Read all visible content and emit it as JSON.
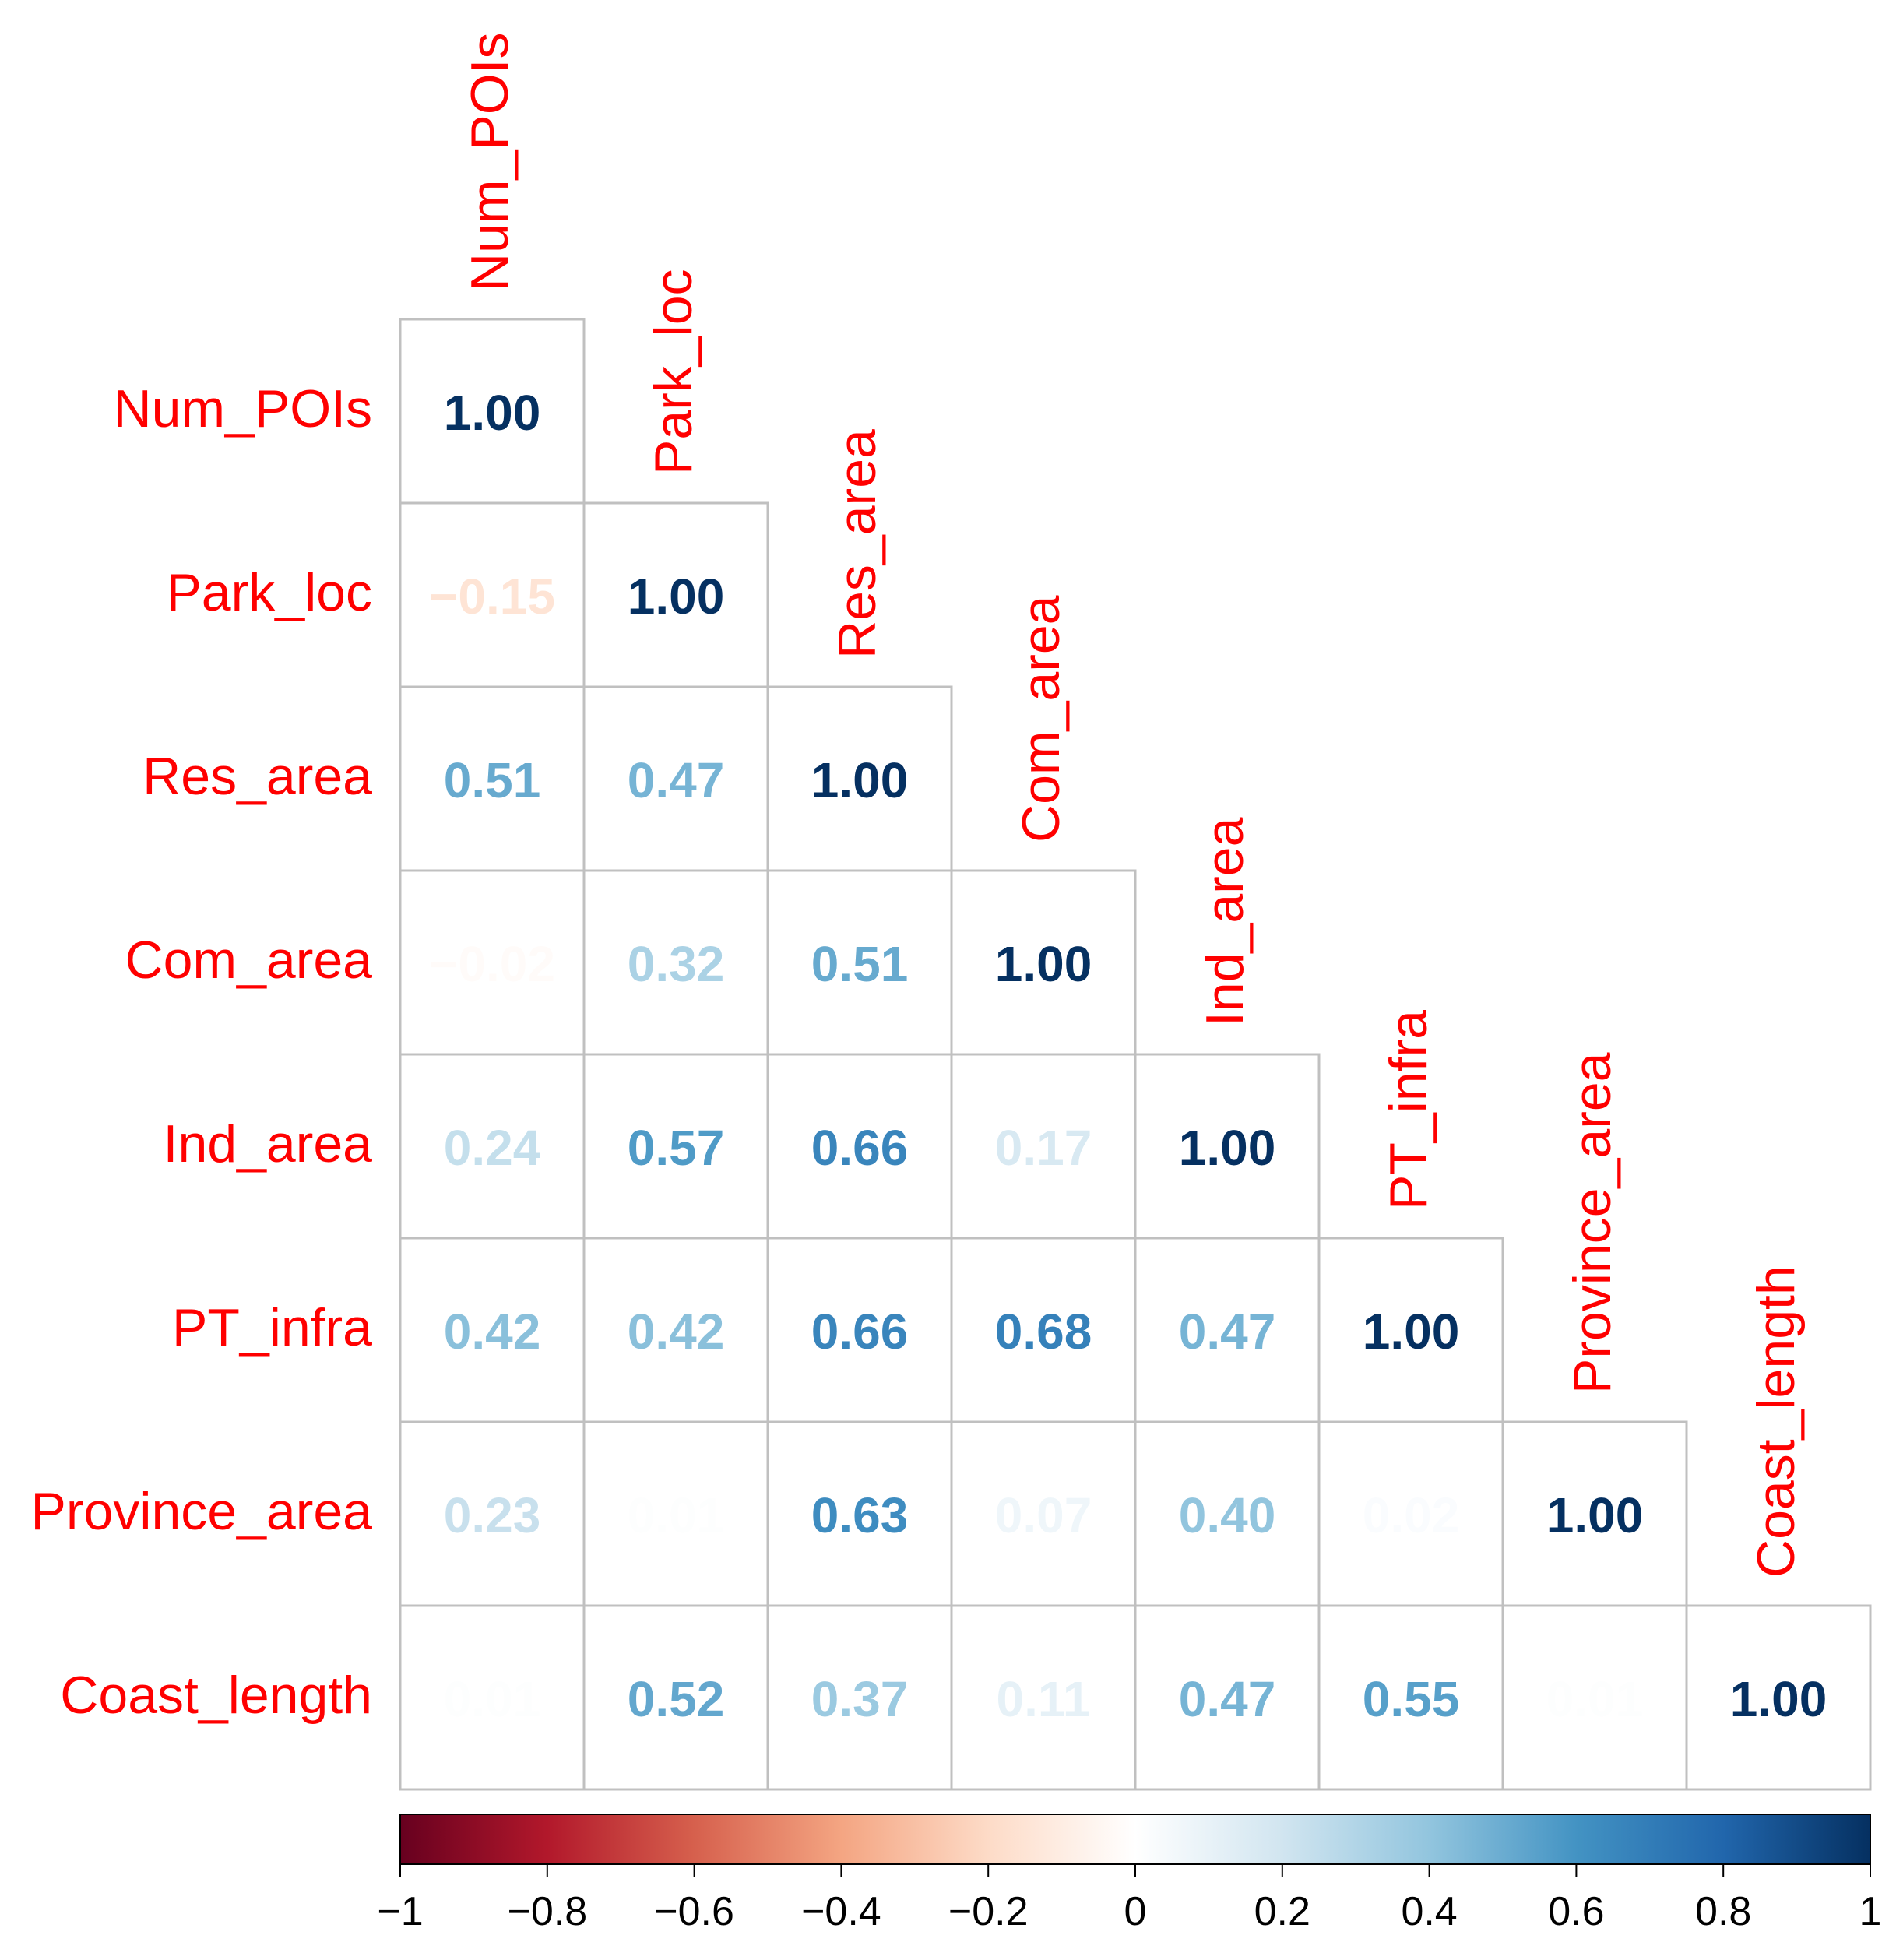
{
  "chart_data": {
    "type": "heatmap",
    "subtype": "correlation-lower-triangle",
    "variables": [
      "Num_POIs",
      "Park_loc",
      "Res_area",
      "Com_area",
      "Ind_area",
      "PT_infra",
      "Province_area",
      "Coast_length"
    ],
    "matrix": [
      [
        1.0
      ],
      [
        -0.15,
        1.0
      ],
      [
        0.51,
        0.47,
        1.0
      ],
      [
        -0.02,
        0.32,
        0.51,
        1.0
      ],
      [
        0.24,
        0.57,
        0.66,
        0.17,
        1.0
      ],
      [
        0.42,
        0.42,
        0.66,
        0.68,
        0.47,
        1.0
      ],
      [
        0.23,
        0.01,
        0.63,
        0.07,
        0.4,
        0.02,
        1.0
      ],
      [
        0.01,
        0.52,
        0.37,
        0.11,
        0.47,
        0.55,
        0.01,
        1.0
      ]
    ],
    "colorbar": {
      "range": [
        -1,
        1
      ],
      "ticks": [
        -1,
        -0.8,
        -0.6,
        -0.4,
        -0.2,
        0,
        0.2,
        0.4,
        0.6,
        0.8,
        1
      ],
      "tick_labels": [
        "−1",
        "−0.8",
        "−0.6",
        "−0.4",
        "−0.2",
        "0",
        "0.2",
        "0.4",
        "0.6",
        "0.8",
        "1"
      ],
      "colors": [
        "#67001f",
        "#b2182b",
        "#d6604d",
        "#f4a582",
        "#fddbc7",
        "#ffffff",
        "#d1e5f0",
        "#92c5de",
        "#4393c3",
        "#2166ac",
        "#053061"
      ]
    },
    "label_color": "#ff0000",
    "grid_color": "#c0c0c0"
  }
}
